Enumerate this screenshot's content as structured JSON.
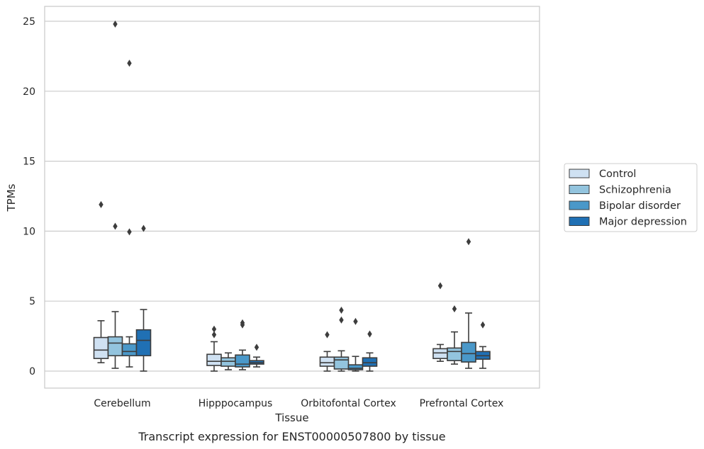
{
  "chart_data": {
    "type": "box",
    "caption": "Transcript expression for ENST00000507800 by tissue",
    "xlabel": "Tissue",
    "ylabel": "TPMs",
    "ylim": [
      -1.2,
      26.1
    ],
    "yticks": [
      0,
      5,
      10,
      15,
      20,
      25
    ],
    "grid": "horizontal",
    "legend_position": "right",
    "categories": [
      "Cerebellum",
      "Hipppocampus",
      "Orbitofontal Cortex",
      "Prefrontal Cortex"
    ],
    "series": [
      {
        "name": "Control",
        "color": "#cfe1f2",
        "boxes": [
          {
            "whisker_low": 0.6,
            "q1": 0.9,
            "median": 1.5,
            "q3": 2.4,
            "whisker_high": 3.6,
            "outliers": [
              11.9
            ]
          },
          {
            "whisker_low": 0.0,
            "q1": 0.4,
            "median": 0.7,
            "q3": 1.2,
            "whisker_high": 2.1,
            "outliers": [
              2.6,
              3.0
            ]
          },
          {
            "whisker_low": 0.0,
            "q1": 0.35,
            "median": 0.6,
            "q3": 1.0,
            "whisker_high": 1.4,
            "outliers": [
              2.6
            ]
          },
          {
            "whisker_low": 0.7,
            "q1": 0.9,
            "median": 1.3,
            "q3": 1.6,
            "whisker_high": 1.9,
            "outliers": [
              6.1
            ]
          }
        ]
      },
      {
        "name": "Schizophrenia",
        "color": "#93c4de",
        "boxes": [
          {
            "whisker_low": 0.2,
            "q1": 1.1,
            "median": 2.0,
            "q3": 2.45,
            "whisker_high": 4.25,
            "outliers": [
              10.35,
              24.8
            ]
          },
          {
            "whisker_low": 0.1,
            "q1": 0.35,
            "median": 0.7,
            "q3": 0.95,
            "whisker_high": 1.3,
            "outliers": []
          },
          {
            "whisker_low": 0.0,
            "q1": 0.15,
            "median": 0.8,
            "q3": 1.0,
            "whisker_high": 1.45,
            "outliers": [
              3.65,
              4.35
            ]
          },
          {
            "whisker_low": 0.5,
            "q1": 0.75,
            "median": 1.4,
            "q3": 1.65,
            "whisker_high": 2.8,
            "outliers": [
              4.45
            ]
          }
        ]
      },
      {
        "name": "Bipolar disorder",
        "color": "#4a98c9",
        "boxes": [
          {
            "whisker_low": 0.3,
            "q1": 1.1,
            "median": 1.4,
            "q3": 1.95,
            "whisker_high": 2.45,
            "outliers": [
              9.95,
              22.0
            ]
          },
          {
            "whisker_low": 0.1,
            "q1": 0.3,
            "median": 0.5,
            "q3": 1.15,
            "whisker_high": 1.5,
            "outliers": [
              3.3,
              3.45
            ]
          },
          {
            "whisker_low": 0.0,
            "q1": 0.1,
            "median": 0.2,
            "q3": 0.45,
            "whisker_high": 1.05,
            "outliers": [
              3.55
            ]
          },
          {
            "whisker_low": 0.2,
            "q1": 0.65,
            "median": 1.25,
            "q3": 2.05,
            "whisker_high": 4.15,
            "outliers": [
              9.25
            ]
          }
        ]
      },
      {
        "name": "Major depression",
        "color": "#2070b4",
        "boxes": [
          {
            "whisker_low": 0.0,
            "q1": 1.1,
            "median": 2.2,
            "q3": 2.95,
            "whisker_high": 4.4,
            "outliers": [
              10.2
            ]
          },
          {
            "whisker_low": 0.3,
            "q1": 0.5,
            "median": 0.6,
            "q3": 0.75,
            "whisker_high": 1.0,
            "outliers": [
              1.7
            ]
          },
          {
            "whisker_low": 0.0,
            "q1": 0.35,
            "median": 0.6,
            "q3": 0.95,
            "whisker_high": 1.3,
            "outliers": [
              2.65
            ]
          },
          {
            "whisker_low": 0.2,
            "q1": 0.85,
            "median": 1.1,
            "q3": 1.4,
            "whisker_high": 1.75,
            "outliers": [
              3.3
            ]
          }
        ]
      }
    ]
  }
}
